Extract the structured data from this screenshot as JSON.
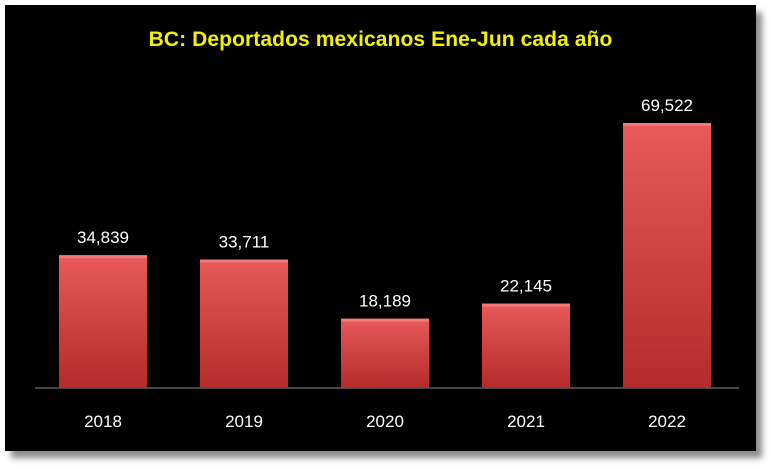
{
  "chart_data": {
    "type": "bar",
    "title": "BC: Deportados mexicanos Ene-Jun cada año",
    "categories": [
      "2018",
      "2019",
      "2020",
      "2021",
      "2022"
    ],
    "values": [
      34839,
      33711,
      18189,
      22145,
      69522
    ],
    "data_labels": [
      "34,839",
      "33,711",
      "18,189",
      "22,145",
      "69,522"
    ],
    "xlabel": "",
    "ylabel": "",
    "ylim": [
      0,
      75000
    ],
    "grid": false,
    "legend": "none"
  },
  "colors": {
    "background": "#000000",
    "title": "#f2f200",
    "bar_top": "#e85a5a",
    "bar_bottom": "#b52a2a",
    "text": "#ffffff"
  }
}
